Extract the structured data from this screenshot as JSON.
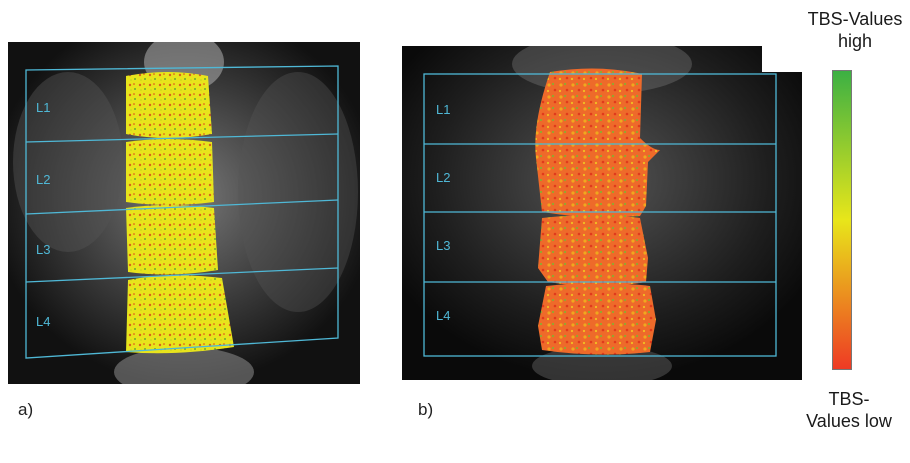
{
  "panels": [
    {
      "id": "a",
      "label": "a)",
      "vertebrae": [
        "L1",
        "L2",
        "L3",
        "L4"
      ]
    },
    {
      "id": "b",
      "label": "b)",
      "vertebrae": [
        "L1",
        "L2",
        "L3",
        "L4"
      ]
    }
  ],
  "legend": {
    "high_label": "TBS-Values high",
    "low_label": "TBS-Values low",
    "gradient_colors": [
      "#3cb043",
      "#e8e61a",
      "#ee3a24"
    ]
  },
  "colors": {
    "roi_lines": "#4fb8d6",
    "panel_a_overlay": "#e8e41c",
    "panel_b_overlay": "#ee6a2a"
  }
}
